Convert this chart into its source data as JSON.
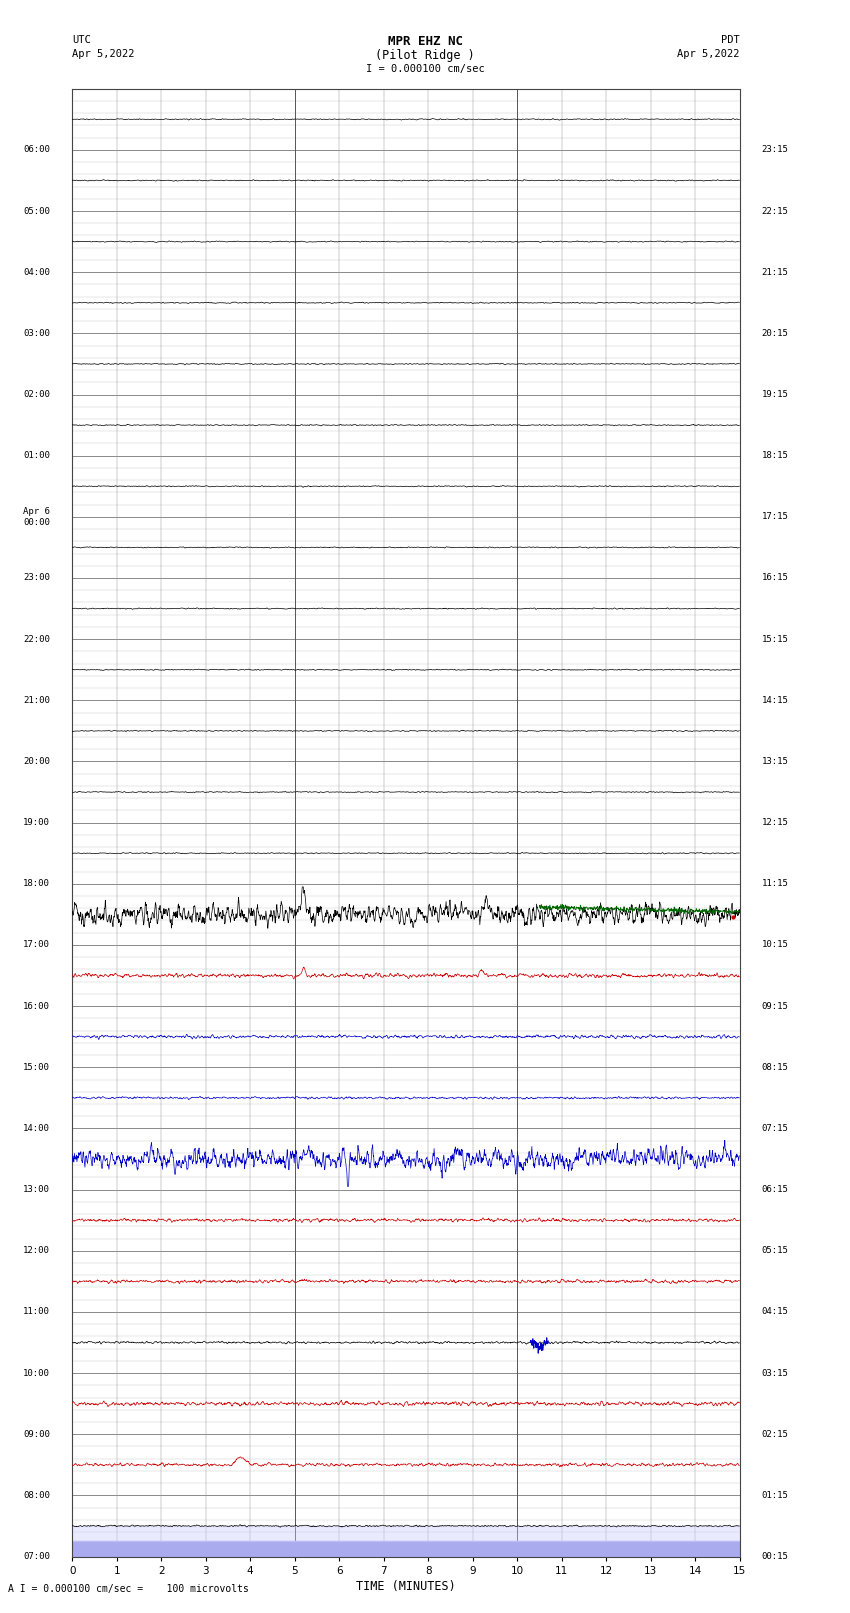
{
  "title_line1": "MPR EHZ NC",
  "title_line2": "(Pilot Ridge )",
  "title_line3": "I = 0.000100 cm/sec",
  "left_label_top": "UTC",
  "left_label_date": "Apr 5,2022",
  "right_label_top": "PDT",
  "right_label_date": "Apr 5,2022",
  "xlabel": "TIME (MINUTES)",
  "footer": "A I = 0.000100 cm/sec =    100 microvolts",
  "n_rows": 24,
  "xmin": 0,
  "xmax": 15,
  "background_color": "#ffffff",
  "utc_labels": [
    "07:00",
    "08:00",
    "09:00",
    "10:00",
    "11:00",
    "12:00",
    "13:00",
    "14:00",
    "15:00",
    "16:00",
    "17:00",
    "18:00",
    "19:00",
    "20:00",
    "21:00",
    "22:00",
    "23:00",
    "Apr 6\n00:00",
    "01:00",
    "02:00",
    "03:00",
    "04:00",
    "05:00",
    "06:00"
  ],
  "pdt_labels": [
    "00:15",
    "01:15",
    "02:15",
    "03:15",
    "04:15",
    "05:15",
    "06:15",
    "07:15",
    "08:15",
    "09:15",
    "10:15",
    "11:15",
    "12:15",
    "13:15",
    "14:15",
    "15:15",
    "16:15",
    "17:15",
    "18:15",
    "19:15",
    "20:15",
    "21:15",
    "22:15",
    "23:15"
  ],
  "row_colors": [
    "black",
    "black",
    "black",
    "black",
    "black",
    "black",
    "black",
    "black",
    "black",
    "black",
    "black",
    "black",
    "black",
    "black",
    "red",
    "blue",
    "blue",
    "blue",
    "red",
    "red",
    "black",
    "red",
    "red",
    "black"
  ],
  "row_amplitudes": [
    0.004,
    0.004,
    0.004,
    0.004,
    0.004,
    0.004,
    0.004,
    0.004,
    0.004,
    0.004,
    0.004,
    0.004,
    0.004,
    0.08,
    0.015,
    0.012,
    0.008,
    0.08,
    0.012,
    0.012,
    0.008,
    0.015,
    0.012,
    0.006
  ],
  "colors": {
    "black": "#000000",
    "red": "#cc0000",
    "blue": "#0000cc",
    "green": "#006600"
  }
}
